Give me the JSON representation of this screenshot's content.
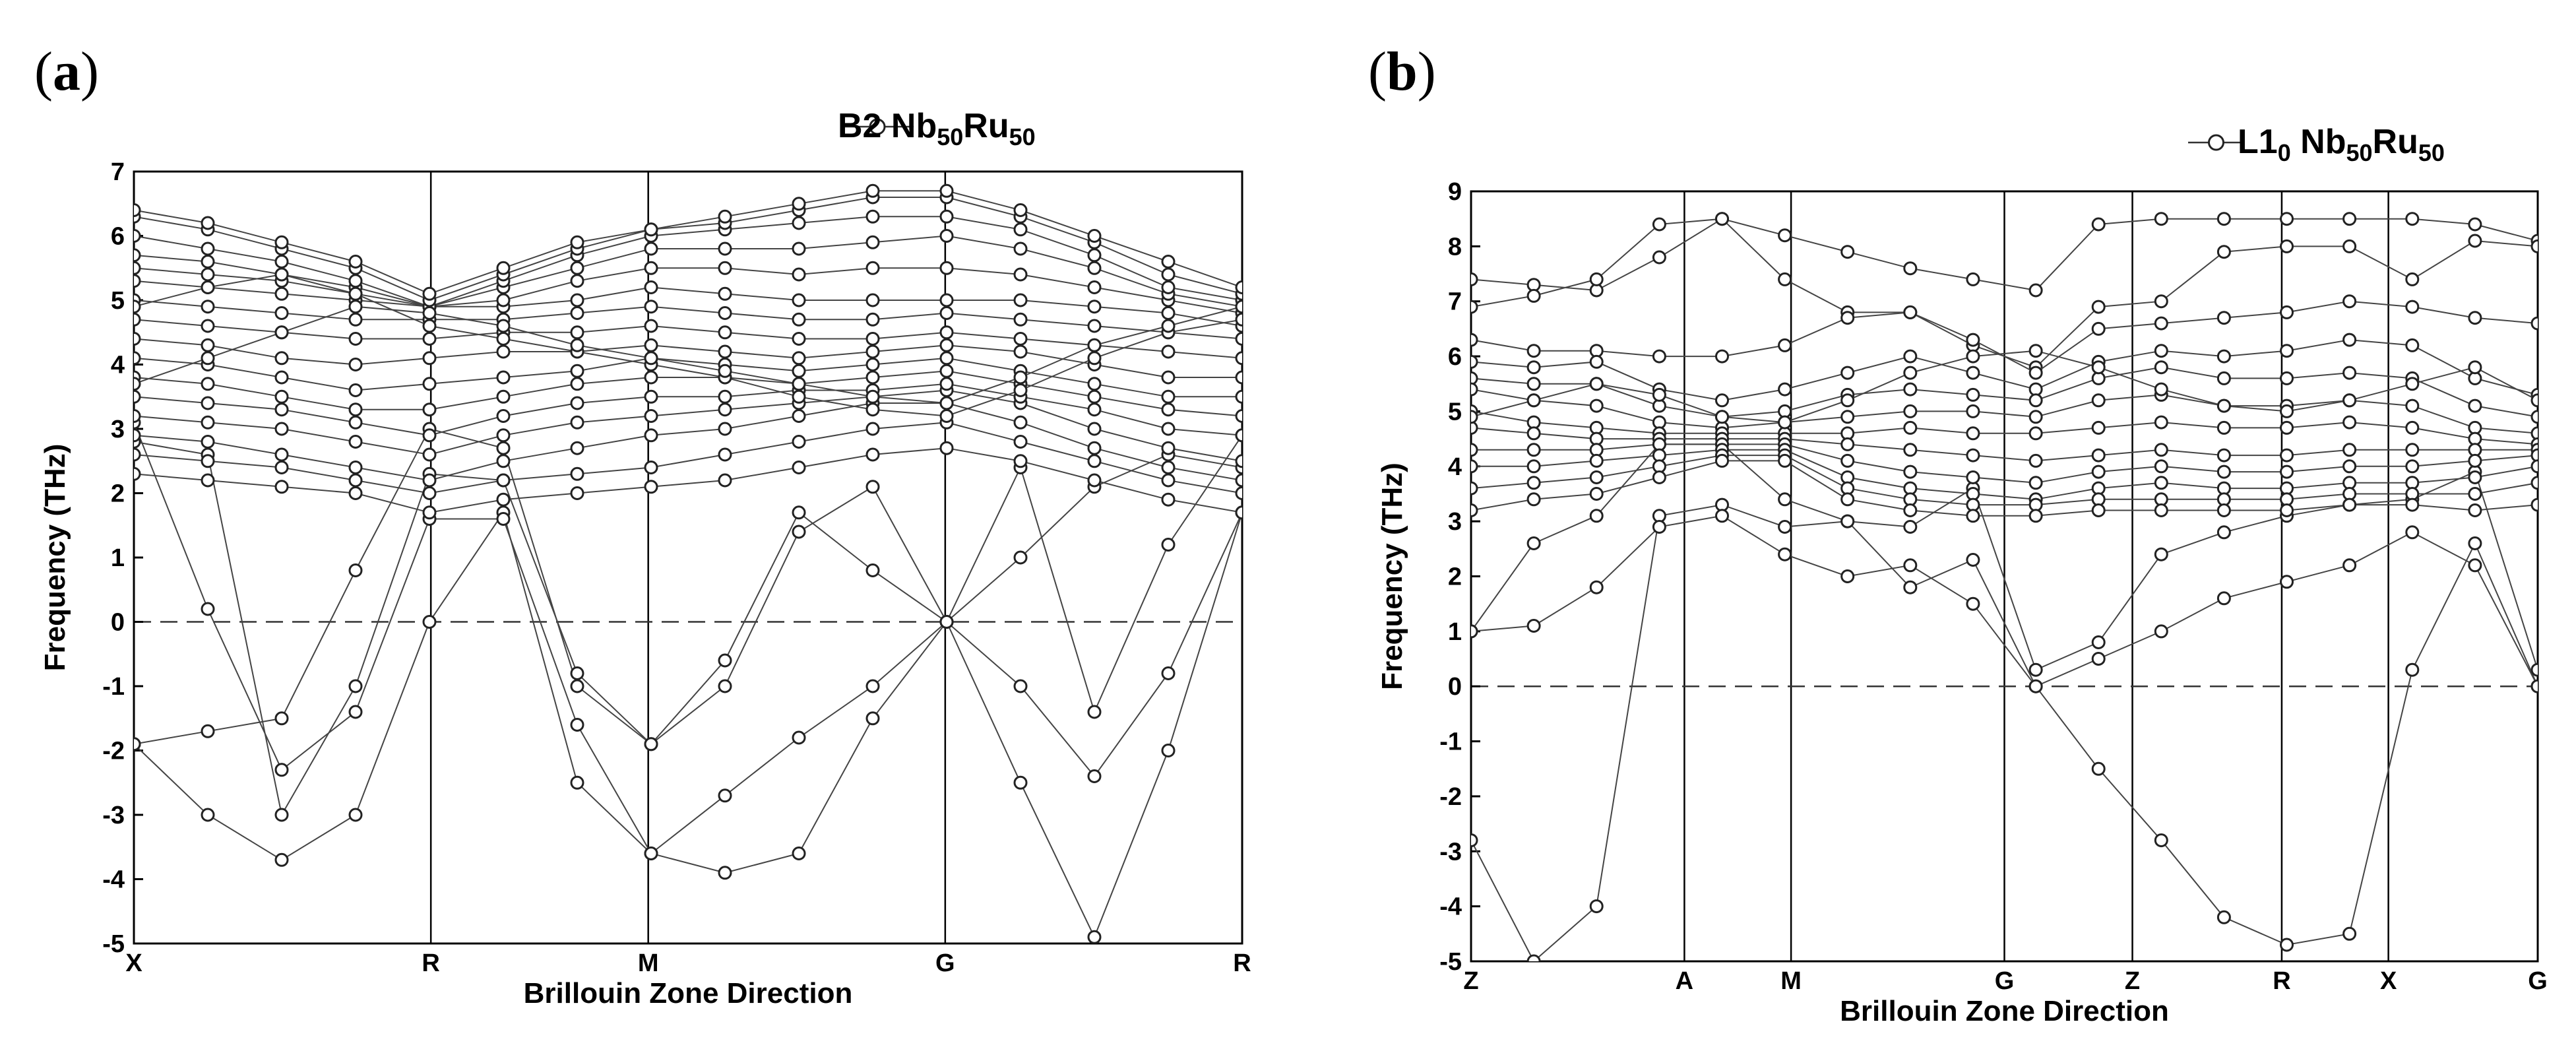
{
  "panels": [
    {
      "label": "a"
    },
    {
      "label": "b"
    }
  ],
  "chart_data": [
    {
      "type": "line",
      "legend": {
        "base": "B2 Nb",
        "sub1": "50",
        "mid": "Ru",
        "sub2": "50",
        "placement": "top-right"
      },
      "xlabel": "Brillouin Zone Direction",
      "ylabel": "Frequency (THz)",
      "ylim": [
        -5,
        7
      ],
      "yticks": [
        -5,
        -4,
        -3,
        -2,
        -1,
        0,
        1,
        2,
        3,
        4,
        5,
        6,
        7
      ],
      "path_points": [
        "X",
        "R",
        "M",
        "G",
        "R"
      ],
      "path_positions": [
        0,
        1,
        1.732,
        2.732,
        3.732
      ],
      "zero_line": "dashed",
      "grid": false,
      "marker": "open-circle",
      "series": [
        {
          "y": [
            -1.9,
            -1.7,
            -1.5,
            0.8,
            3.0,
            2.7,
            -1.0,
            -1.9,
            -0.6,
            1.7,
            0.8,
            0.0,
            -1.0,
            -2.4,
            -0.8,
            1.7
          ]
        },
        {
          "y": [
            -1.9,
            -3.0,
            -3.7,
            -3.0,
            0.0,
            1.7,
            -2.5,
            -3.6,
            -3.9,
            -3.6,
            -1.5,
            0.0,
            -2.5,
            -4.9,
            -2.0,
            1.7
          ]
        },
        {
          "y": [
            3.1,
            0.2,
            -2.3,
            -1.4,
            1.6,
            1.6,
            -1.6,
            -3.6,
            -2.7,
            -1.8,
            -1.0,
            0.0,
            1.0,
            2.1,
            2.6,
            2.4
          ]
        },
        {
          "y": [
            2.8,
            2.6,
            -3.0,
            -1.0,
            2.3,
            2.2,
            -0.8,
            -1.9,
            -1.0,
            1.4,
            2.1,
            0.0,
            2.4,
            -1.4,
            1.2,
            2.9
          ]
        },
        {
          "y": [
            2.3,
            2.2,
            2.1,
            2.0,
            1.7,
            1.9,
            2.0,
            2.1,
            2.2,
            2.4,
            2.6,
            2.7,
            2.5,
            2.2,
            1.9,
            1.7
          ]
        },
        {
          "y": [
            2.6,
            2.5,
            2.4,
            2.2,
            2.0,
            2.2,
            2.3,
            2.4,
            2.6,
            2.8,
            3.0,
            3.1,
            2.8,
            2.5,
            2.2,
            2.0
          ]
        },
        {
          "y": [
            2.9,
            2.8,
            2.6,
            2.4,
            2.2,
            2.5,
            2.7,
            2.9,
            3.0,
            3.2,
            3.4,
            3.4,
            3.1,
            2.7,
            2.4,
            2.2
          ]
        },
        {
          "y": [
            3.2,
            3.1,
            3.0,
            2.8,
            2.6,
            2.9,
            3.1,
            3.2,
            3.3,
            3.4,
            3.5,
            3.6,
            3.4,
            3.0,
            2.7,
            2.5
          ]
        },
        {
          "y": [
            3.5,
            3.4,
            3.3,
            3.1,
            2.9,
            3.2,
            3.4,
            3.5,
            3.5,
            3.6,
            3.6,
            3.7,
            3.5,
            3.3,
            3.0,
            2.9
          ]
        },
        {
          "y": [
            3.8,
            3.7,
            3.5,
            3.3,
            3.3,
            3.5,
            3.7,
            3.8,
            3.8,
            3.7,
            3.8,
            3.9,
            3.7,
            3.5,
            3.3,
            3.2
          ]
        },
        {
          "y": [
            4.1,
            4.0,
            3.8,
            3.6,
            3.7,
            3.8,
            3.9,
            4.1,
            4.0,
            3.9,
            4.0,
            4.1,
            3.9,
            3.7,
            3.5,
            3.5
          ]
        },
        {
          "y": [
            4.4,
            4.3,
            4.1,
            4.0,
            4.1,
            4.2,
            4.2,
            4.3,
            4.2,
            4.1,
            4.2,
            4.3,
            4.2,
            4.0,
            3.8,
            3.8
          ]
        },
        {
          "y": [
            4.7,
            4.6,
            4.5,
            4.4,
            4.4,
            4.5,
            4.5,
            4.6,
            4.5,
            4.4,
            4.4,
            4.5,
            4.4,
            4.3,
            4.2,
            4.1
          ]
        },
        {
          "y": [
            5.0,
            4.9,
            4.8,
            4.7,
            4.7,
            4.7,
            4.8,
            4.9,
            4.8,
            4.7,
            4.7,
            4.8,
            4.7,
            4.6,
            4.5,
            4.4
          ]
        },
        {
          "y": [
            5.3,
            5.2,
            5.1,
            5.0,
            4.9,
            4.9,
            5.0,
            5.2,
            5.1,
            5.0,
            5.0,
            5.0,
            5.0,
            4.9,
            4.8,
            4.6
          ]
        },
        {
          "y": [
            5.5,
            5.4,
            5.3,
            5.1,
            4.9,
            5.0,
            5.3,
            5.5,
            5.5,
            5.4,
            5.5,
            5.5,
            5.4,
            5.2,
            5.0,
            4.8
          ]
        },
        {
          "y": [
            5.7,
            5.6,
            5.4,
            5.2,
            4.9,
            5.2,
            5.5,
            5.8,
            5.8,
            5.8,
            5.9,
            6.0,
            5.8,
            5.5,
            5.1,
            4.9
          ]
        },
        {
          "y": [
            6.0,
            5.8,
            5.6,
            5.3,
            4.9,
            5.3,
            5.7,
            6.0,
            6.1,
            6.2,
            6.3,
            6.3,
            6.1,
            5.7,
            5.2,
            5.0
          ]
        },
        {
          "y": [
            6.3,
            6.1,
            5.8,
            5.5,
            5.0,
            5.4,
            5.8,
            6.1,
            6.2,
            6.4,
            6.6,
            6.6,
            6.3,
            5.9,
            5.4,
            5.1
          ]
        },
        {
          "y": [
            6.4,
            6.2,
            5.9,
            5.6,
            5.1,
            5.5,
            5.9,
            6.1,
            6.3,
            6.5,
            6.7,
            6.7,
            6.4,
            6.0,
            5.6,
            5.2
          ]
        },
        {
          "y": [
            4.9,
            5.2,
            5.4,
            5.1,
            4.6,
            4.4,
            4.2,
            4.0,
            3.8,
            3.5,
            3.3,
            3.2,
            3.6,
            4.1,
            4.5,
            4.7
          ]
        },
        {
          "y": [
            3.7,
            4.1,
            4.5,
            4.9,
            4.8,
            4.6,
            4.3,
            4.1,
            3.9,
            3.7,
            3.5,
            3.4,
            3.8,
            4.3,
            4.6,
            4.9
          ]
        }
      ]
    },
    {
      "type": "line",
      "legend": {
        "base": "L1",
        "sub1": "0",
        "mid": " Nb",
        "sub2": "50",
        "tail": "Ru",
        "sub3": "50",
        "placement": "top-right"
      },
      "xlabel": "Brillouin Zone Direction",
      "ylabel": "Frequency (THz)",
      "ylim": [
        -5,
        9
      ],
      "yticks": [
        -5,
        -4,
        -3,
        -2,
        -1,
        0,
        1,
        2,
        3,
        4,
        5,
        6,
        7,
        8,
        9
      ],
      "path_points": [
        "Z",
        "A",
        "M",
        "G",
        "Z",
        "R",
        "X",
        "G"
      ],
      "path_positions": [
        0,
        1,
        1.5,
        2.5,
        3.1,
        3.8,
        4.3,
        5.0
      ],
      "zero_line": "dashed",
      "grid": false,
      "marker": "open-circle",
      "series": [
        {
          "y": [
            -2.8,
            -5.0,
            -4.0,
            3.1,
            3.3,
            2.9,
            3.0,
            1.8,
            2.3,
            0.0,
            -1.5,
            -2.8,
            -4.2,
            -4.7,
            -4.5,
            0.3,
            2.6,
            0.0
          ]
        },
        {
          "y": [
            1.0,
            1.1,
            1.8,
            2.9,
            3.1,
            2.4,
            2.0,
            2.2,
            1.5,
            0.0,
            0.5,
            1.0,
            1.6,
            1.9,
            2.2,
            2.8,
            2.2,
            0.0
          ]
        },
        {
          "y": [
            1.0,
            2.6,
            3.1,
            4.4,
            4.4,
            3.4,
            3.0,
            2.9,
            3.6,
            0.3,
            0.8,
            2.4,
            2.8,
            3.1,
            3.3,
            3.4,
            3.9,
            0.3
          ]
        },
        {
          "y": [
            7.4,
            7.3,
            7.2,
            7.8,
            8.5,
            8.2,
            7.9,
            7.6,
            7.4,
            7.2,
            8.4,
            8.5,
            8.5,
            8.5,
            8.5,
            8.5,
            8.4,
            8.1
          ]
        },
        {
          "y": [
            6.9,
            7.1,
            7.4,
            8.4,
            8.5,
            7.4,
            6.8,
            6.8,
            6.2,
            5.8,
            6.9,
            7.0,
            7.9,
            8.0,
            8.0,
            7.4,
            8.1,
            8.0
          ]
        },
        {
          "y": [
            6.3,
            6.1,
            6.1,
            6.0,
            6.0,
            6.2,
            6.7,
            6.8,
            6.3,
            5.7,
            6.5,
            6.6,
            6.7,
            6.8,
            7.0,
            6.9,
            6.7,
            6.6
          ]
        },
        {
          "y": [
            5.9,
            5.8,
            5.9,
            5.4,
            5.2,
            5.4,
            5.7,
            6.0,
            5.7,
            5.4,
            5.9,
            6.1,
            6.0,
            6.1,
            6.3,
            6.2,
            5.6,
            5.3
          ]
        },
        {
          "y": [
            5.6,
            5.5,
            5.5,
            5.1,
            4.9,
            5.0,
            5.3,
            5.4,
            5.3,
            5.2,
            5.6,
            5.8,
            5.6,
            5.6,
            5.7,
            5.6,
            5.1,
            4.9
          ]
        },
        {
          "y": [
            5.4,
            5.2,
            5.1,
            4.8,
            4.7,
            4.8,
            4.9,
            5.0,
            5.0,
            4.9,
            5.2,
            5.3,
            5.1,
            5.1,
            5.2,
            5.1,
            4.7,
            4.6
          ]
        },
        {
          "y": [
            5.0,
            4.8,
            4.7,
            4.6,
            4.6,
            4.6,
            4.6,
            4.7,
            4.6,
            4.6,
            4.7,
            4.8,
            4.7,
            4.7,
            4.8,
            4.7,
            4.5,
            4.4
          ]
        },
        {
          "y": [
            4.7,
            4.6,
            4.5,
            4.5,
            4.5,
            4.5,
            4.4,
            4.3,
            4.2,
            4.1,
            4.2,
            4.3,
            4.2,
            4.2,
            4.3,
            4.3,
            4.3,
            4.3
          ]
        },
        {
          "y": [
            4.3,
            4.3,
            4.3,
            4.4,
            4.4,
            4.4,
            4.1,
            3.9,
            3.8,
            3.7,
            3.9,
            4.0,
            3.9,
            3.9,
            4.0,
            4.0,
            4.1,
            4.2
          ]
        },
        {
          "y": [
            4.0,
            4.0,
            4.1,
            4.2,
            4.3,
            4.3,
            3.8,
            3.6,
            3.5,
            3.4,
            3.6,
            3.7,
            3.6,
            3.6,
            3.7,
            3.7,
            3.8,
            4.0
          ]
        },
        {
          "y": [
            3.6,
            3.7,
            3.8,
            4.0,
            4.2,
            4.2,
            3.6,
            3.4,
            3.3,
            3.3,
            3.4,
            3.4,
            3.4,
            3.4,
            3.5,
            3.5,
            3.5,
            3.7
          ]
        },
        {
          "y": [
            3.2,
            3.4,
            3.5,
            3.8,
            4.1,
            4.1,
            3.4,
            3.2,
            3.1,
            3.1,
            3.2,
            3.2,
            3.2,
            3.2,
            3.3,
            3.3,
            3.2,
            3.3
          ]
        },
        {
          "y": [
            4.9,
            5.2,
            5.5,
            5.3,
            4.9,
            4.8,
            5.2,
            5.7,
            6.0,
            6.1,
            5.8,
            5.4,
            5.1,
            5.0,
            5.2,
            5.5,
            5.8,
            5.2
          ]
        }
      ]
    }
  ]
}
